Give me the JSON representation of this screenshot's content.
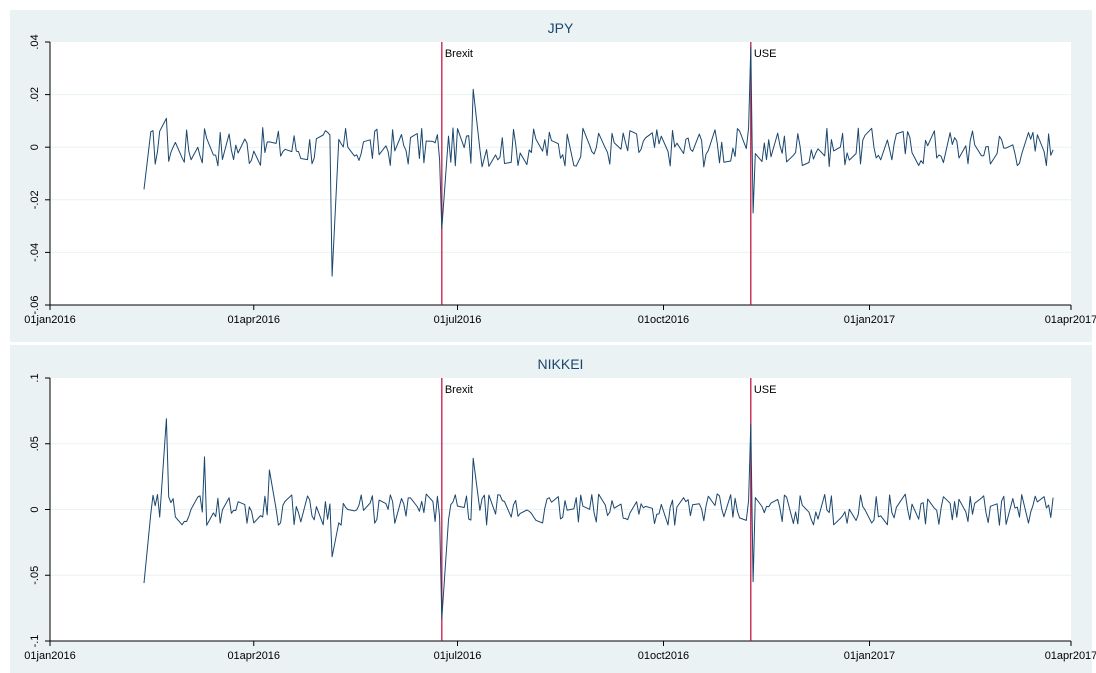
{
  "chart_data": [
    {
      "type": "line",
      "title": "JPY",
      "xlim": [
        "2016-01-01",
        "2017-04-01"
      ],
      "ylim": [
        -0.06,
        0.04
      ],
      "yticks": [
        -0.06,
        -0.04,
        -0.02,
        0,
        0.02,
        0.04
      ],
      "ytick_labels": [
        "-.06",
        "-.04",
        "-.02",
        "0",
        ".02",
        ".04"
      ],
      "xticks": [
        "2016-01-01",
        "2016-04-01",
        "2016-07-01",
        "2016-10-01",
        "2017-01-01",
        "2017-04-01"
      ],
      "xtick_labels": [
        "01jan2016",
        "01apr2016",
        "01jul2016",
        "01oct2016",
        "01jan2017",
        "01apr2017"
      ],
      "grid": true,
      "line_color": "#1a476f",
      "event_color": "#c10534",
      "events": [
        {
          "label": "Brexit",
          "date": "2016-06-24"
        },
        {
          "label": "USE",
          "date": "2016-11-09"
        }
      ],
      "series": [
        {
          "x": [
            "2016-02-12",
            "2016-02-22",
            "2016-03-10",
            "2016-04-08",
            "2016-05-06",
            "2016-05-13",
            "2016-06-24",
            "2016-07-08",
            "2016-11-09",
            "2016-11-10",
            "2017-03-24"
          ],
          "y": [
            -0.016,
            0.011,
            0.007,
            0.002,
            -0.049,
            0.0,
            -0.031,
            0.022,
            0.038,
            -0.025,
            -0.001
          ]
        }
      ]
    },
    {
      "type": "line",
      "title": "NIKKEI",
      "xlim": [
        "2016-01-01",
        "2017-04-01"
      ],
      "ylim": [
        -0.1,
        0.1
      ],
      "yticks": [
        -0.1,
        -0.05,
        0,
        0.05,
        0.1
      ],
      "ytick_labels": [
        "-.1",
        "-.05",
        "0",
        ".05",
        ".1"
      ],
      "xticks": [
        "2016-01-01",
        "2016-04-01",
        "2016-07-01",
        "2016-10-01",
        "2017-01-01",
        "2017-04-01"
      ],
      "xtick_labels": [
        "01jan2016",
        "01apr2016",
        "01jul2016",
        "01oct2016",
        "01jan2017",
        "01apr2017"
      ],
      "grid": true,
      "line_color": "#1a476f",
      "event_color": "#c10534",
      "events": [
        {
          "label": "Brexit",
          "date": "2016-06-24"
        },
        {
          "label": "USE",
          "date": "2016-11-09"
        }
      ],
      "series": [
        {
          "x": [
            "2016-02-12",
            "2016-02-22",
            "2016-03-10",
            "2016-04-08",
            "2016-05-06",
            "2016-05-13",
            "2016-06-24",
            "2016-07-08",
            "2016-11-09",
            "2016-11-10",
            "2017-03-24"
          ],
          "y": [
            -0.056,
            0.069,
            0.04,
            0.03,
            -0.036,
            0.0,
            -0.083,
            0.039,
            0.065,
            -0.055,
            0.009
          ]
        }
      ]
    }
  ]
}
